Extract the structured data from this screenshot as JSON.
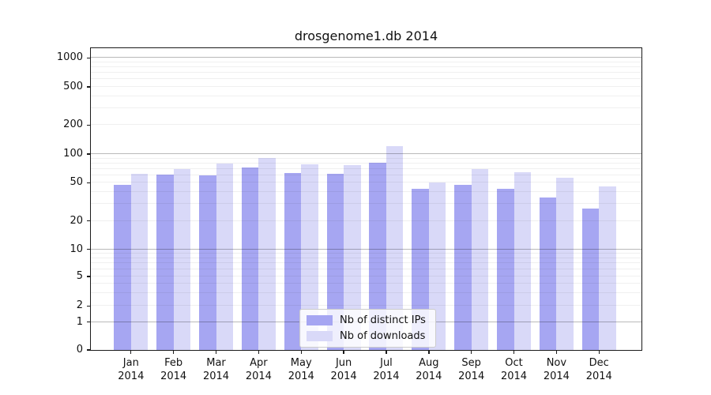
{
  "title": "drosgenome1.db 2014",
  "chart_data": {
    "type": "bar",
    "title": "drosgenome1.db 2014",
    "categories": [
      "Jan 2014",
      "Feb 2014",
      "Mar 2014",
      "Apr 2014",
      "May 2014",
      "Jun 2014",
      "Jul 2014",
      "Aug 2014",
      "Sep 2014",
      "Oct 2014",
      "Nov 2014",
      "Dec 2014"
    ],
    "months": [
      {
        "month": "Jan",
        "year": "2014"
      },
      {
        "month": "Feb",
        "year": "2014"
      },
      {
        "month": "Mar",
        "year": "2014"
      },
      {
        "month": "Apr",
        "year": "2014"
      },
      {
        "month": "May",
        "year": "2014"
      },
      {
        "month": "Jun",
        "year": "2014"
      },
      {
        "month": "Jul",
        "year": "2014"
      },
      {
        "month": "Aug",
        "year": "2014"
      },
      {
        "month": "Sep",
        "year": "2014"
      },
      {
        "month": "Oct",
        "year": "2014"
      },
      {
        "month": "Nov",
        "year": "2014"
      },
      {
        "month": "Dec",
        "year": "2014"
      }
    ],
    "series": [
      {
        "name": "Nb of distinct IPs",
        "color": "#a6a6f2",
        "values": [
          48,
          61,
          60,
          73,
          63,
          62,
          81,
          43,
          48,
          43,
          35,
          27
        ]
      },
      {
        "name": "Nb of downloads",
        "color": "#d9d9f8",
        "values": [
          62,
          70,
          80,
          91,
          78,
          76,
          120,
          50,
          70,
          64,
          57,
          46
        ]
      }
    ],
    "legend": {
      "position": "lower center-left inside plot",
      "entries": [
        "Nb of distinct IPs",
        "Nb of downloads"
      ]
    },
    "y_axis": {
      "scale": "symlog-like (linear 0-1, log-ish above)",
      "ylim": [
        0,
        1150
      ],
      "grid": true,
      "ticks": [
        {
          "v": 0,
          "f": 0.0,
          "label": "0"
        },
        {
          "v": 1,
          "f": 0.0924,
          "label": "1"
        },
        {
          "v": 2,
          "f": 0.1458,
          "label": "2"
        },
        {
          "v": 5,
          "f": 0.2435,
          "label": "5"
        },
        {
          "v": 10,
          "f": 0.3332,
          "label": "10"
        },
        {
          "v": 20,
          "f": 0.4277,
          "label": "20"
        },
        {
          "v": 50,
          "f": 0.5539,
          "label": "50"
        },
        {
          "v": 100,
          "f": 0.6492,
          "label": "100"
        },
        {
          "v": 200,
          "f": 0.745,
          "label": "200"
        },
        {
          "v": 500,
          "f": 0.8719,
          "label": "500"
        },
        {
          "v": 1000,
          "f": 0.9678,
          "label": "1000"
        }
      ],
      "major_gridlines": [
        1,
        10,
        100,
        1000
      ],
      "minor_gridlines": [
        2,
        3,
        4,
        5,
        6,
        7,
        8,
        9,
        20,
        30,
        40,
        50,
        60,
        70,
        80,
        90,
        200,
        300,
        400,
        500,
        600,
        700,
        800,
        900
      ]
    }
  },
  "colors": {
    "bar_distinct_ips": "#a6a6f2",
    "bar_downloads": "#d9d9f8",
    "spine": "#1a1a1a",
    "background": "#ffffff"
  }
}
